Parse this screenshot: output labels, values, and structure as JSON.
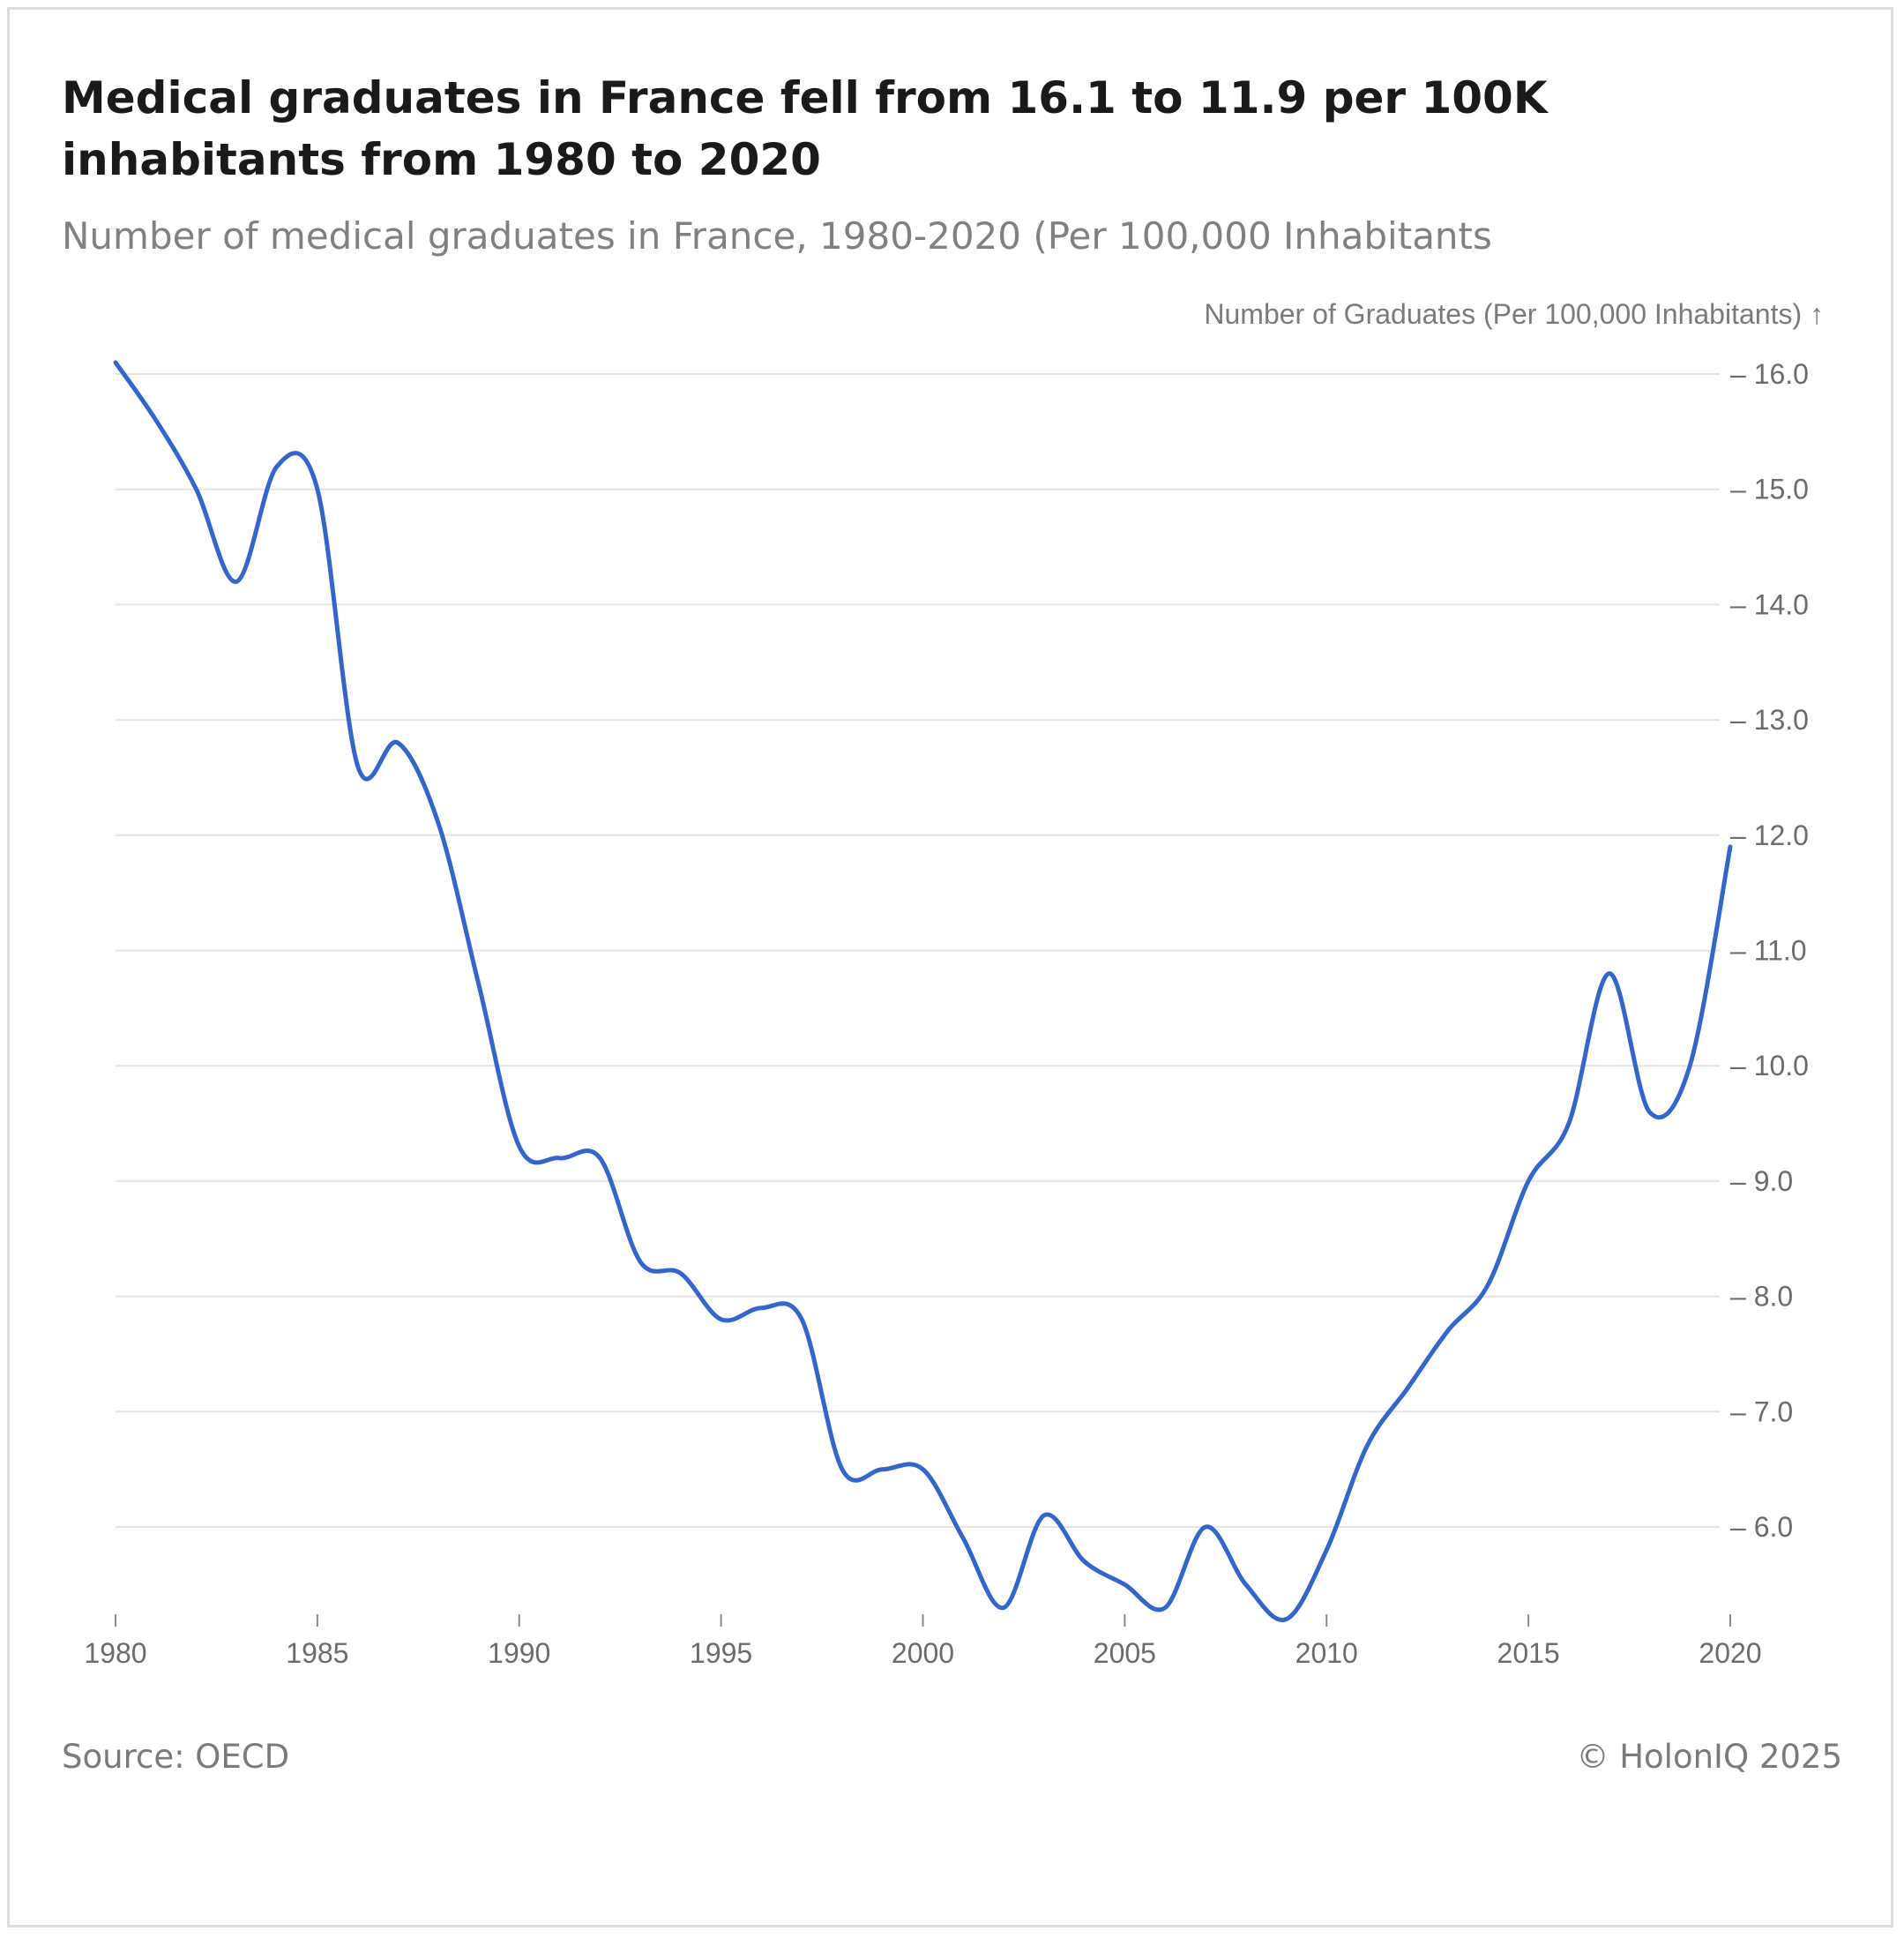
{
  "chart_data": {
    "type": "line",
    "title": "Medical graduates in France fell from 16.1 to 11.9 per 100K inhabitants from 1980 to 2020",
    "subtitle": "Number of medical graduates in France, 1980-2020 (Per 100,000 Inhabitants",
    "ylabel": "Number of Graduates (Per 100,000 Inhabitants) ↑",
    "xlabel": "",
    "xlim": [
      1980,
      2020
    ],
    "ylim": [
      5.3,
      16.2
    ],
    "y_ticks": [
      6.0,
      7.0,
      8.0,
      9.0,
      10.0,
      11.0,
      12.0,
      13.0,
      14.0,
      15.0,
      16.0
    ],
    "y_tick_labels": [
      "– 6.0",
      "– 7.0",
      "– 8.0",
      "– 9.0",
      "– 10.0",
      "– 11.0",
      "– 12.0",
      "– 13.0",
      "– 14.0",
      "– 15.0",
      "– 16.0"
    ],
    "x_ticks": [
      1980,
      1985,
      1990,
      1995,
      2000,
      2005,
      2010,
      2015,
      2020
    ],
    "x_tick_labels": [
      "1980",
      "1985",
      "1990",
      "1995",
      "2000",
      "2005",
      "2010",
      "2015",
      "2020"
    ],
    "grid": true,
    "axis_position": "right",
    "series": [
      {
        "color": "#3366cc",
        "x": [
          1980,
          1981,
          1982,
          1983,
          1984,
          1985,
          1986,
          1987,
          1988,
          1989,
          1990,
          1991,
          1992,
          1993,
          1994,
          1995,
          1996,
          1997,
          1998,
          1999,
          2000,
          2001,
          2002,
          2003,
          2004,
          2005,
          2006,
          2007,
          2008,
          2009,
          2010,
          2011,
          2012,
          2013,
          2014,
          2015,
          2016,
          2017,
          2018,
          2019,
          2020
        ],
        "values": [
          16.1,
          15.6,
          15.0,
          14.2,
          15.2,
          15.0,
          12.6,
          12.8,
          12.1,
          10.7,
          9.3,
          9.2,
          9.2,
          8.3,
          8.2,
          7.8,
          7.9,
          7.8,
          6.5,
          6.5,
          6.5,
          5.9,
          5.3,
          6.1,
          5.7,
          5.5,
          5.3,
          6.0,
          5.5,
          5.2,
          5.8,
          6.7,
          7.2,
          7.7,
          8.1,
          9.0,
          9.5,
          10.8,
          9.6,
          10.0,
          11.9
        ]
      }
    ]
  },
  "footer": {
    "source": "Source: OECD",
    "copyright": "© HolonIQ 2025"
  }
}
